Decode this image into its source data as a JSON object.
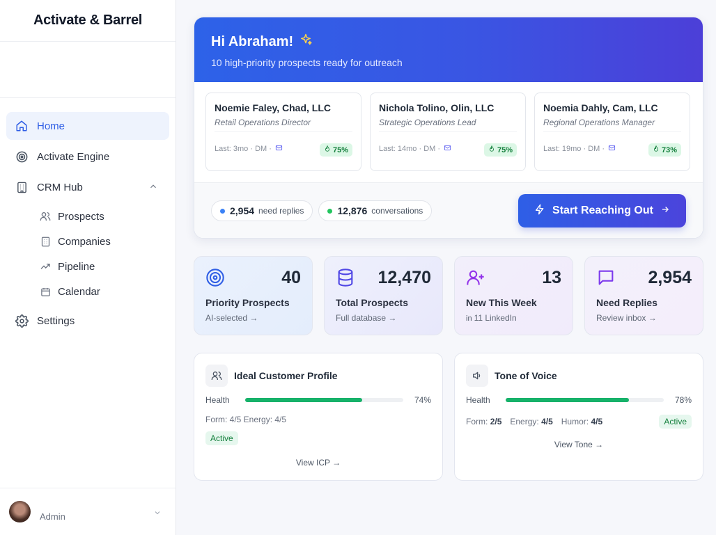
{
  "brand": "Activate & Barrel",
  "nav": {
    "home": "Home",
    "engine": "Activate Engine",
    "crm": "CRM Hub",
    "prospects": "Prospects",
    "companies": "Companies",
    "pipeline": "Pipeline",
    "calendar": "Calendar",
    "settings": "Settings"
  },
  "user": {
    "name": "Admin"
  },
  "hero": {
    "greeting": "Hi Abraham!",
    "subtitle": "10 high-priority prospects ready for outreach",
    "prospects": [
      {
        "name": "Noemie Faley, Chad, LLC",
        "title": "Retail Operations Director",
        "meta": "Last: 3mo · DM ·",
        "score": "75%"
      },
      {
        "name": "Nichola Tolino, Olin, LLC",
        "title": "Strategic Operations Lead",
        "meta": "Last: 14mo · DM ·",
        "score": "75%"
      },
      {
        "name": "Noemia Dahly, Cam, LLC",
        "title": "Regional Operations Manager",
        "meta": "Last: 19mo · DM ·",
        "score": "73%"
      }
    ],
    "replies_count": "2,954",
    "replies_label": "need replies",
    "conv_count": "12,876",
    "conv_label": "conversations",
    "cta": "Start Reaching Out"
  },
  "stats": [
    {
      "value": "40",
      "label": "Priority Prospects",
      "sub": "AI-selected →"
    },
    {
      "value": "12,470",
      "label": "Total Prospects",
      "sub": "Full database →"
    },
    {
      "value": "13",
      "label": "New This Week",
      "sub": "11 LinkedIn"
    },
    {
      "value": "2,954",
      "label": "Need Replies",
      "sub": "Review inbox →"
    }
  ],
  "icp": {
    "title": "Ideal Customer Profile",
    "health_label": "Health",
    "health_value": "74%",
    "health_fraction": 0.74,
    "traits": "Form: 4/5   Energy: 4/5",
    "status": "Active",
    "link": "View ICP →"
  },
  "tone": {
    "title": "Tone of Voice",
    "health_label": "Health",
    "health_value": "78%",
    "health_fraction": 0.78,
    "form_label": "Form:",
    "form_value": "2/5",
    "energy_label": "Energy:",
    "energy_value": "4/5",
    "humor_label": "Humor:",
    "humor_value": "4/5",
    "status": "Active",
    "link": "View Tone →"
  },
  "colors": {
    "accent": "#2f5ee5",
    "success": "#17b26a",
    "gradient_end": "#4c3fd8"
  }
}
